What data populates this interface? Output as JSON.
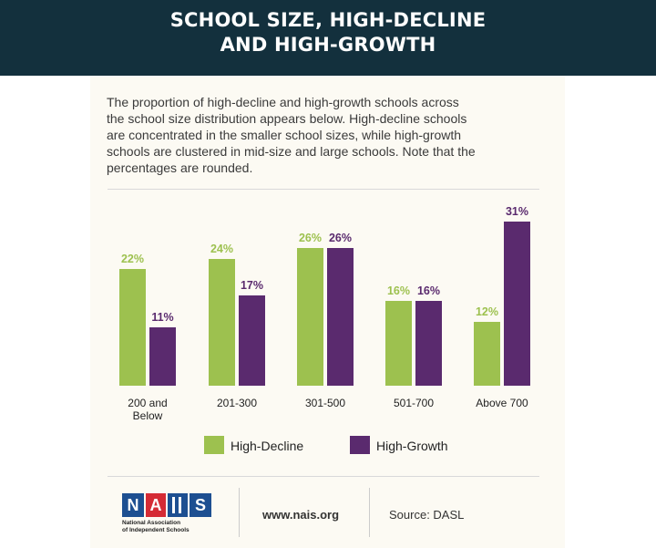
{
  "header": {
    "title_line1": "SCHOOL SIZE, HIGH-DECLINE",
    "title_line2": "AND HIGH-GROWTH"
  },
  "intro": "The proportion of high-decline and high-growth schools across\nthe school size distribution appears below. High-decline schools\nare concentrated in the smaller school sizes, while high-growth\nschools are clustered in mid-size and large schools. Note that the\npercentages are rounded.",
  "colors": {
    "header_bg": "#13303d",
    "high_decline": "#9dc14f",
    "high_growth": "#5a2a6e",
    "logo_blue": "#1d4f91",
    "logo_red": "#d52b35"
  },
  "chart_data": {
    "type": "bar",
    "categories": [
      "200 and\nBelow",
      "201-300",
      "301-500",
      "501-700",
      "Above 700"
    ],
    "series": [
      {
        "name": "High-Decline",
        "values": [
          22,
          24,
          26,
          16,
          12
        ],
        "labels": [
          "22%",
          "24%",
          "26%",
          "16%",
          "12%"
        ]
      },
      {
        "name": "High-Growth",
        "values": [
          11,
          17,
          26,
          16,
          31
        ],
        "labels": [
          "11%",
          "17%",
          "26%",
          "16%",
          "31%"
        ]
      }
    ],
    "ylim": [
      0,
      31
    ],
    "legend": "bottom",
    "grid": false
  },
  "footer": {
    "logo_letters": [
      "N",
      "A",
      "I",
      "S"
    ],
    "logo_text": "National Association\nof Independent Schools",
    "url": "www.nais.org",
    "source": "Source: DASL"
  }
}
